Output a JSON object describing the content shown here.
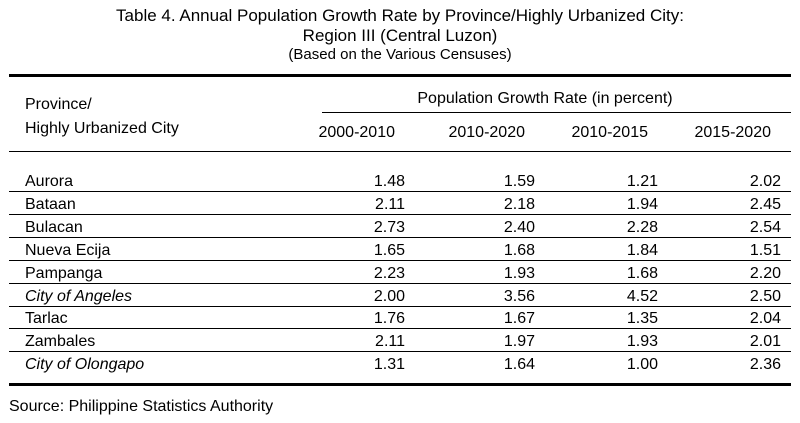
{
  "title": {
    "line1": "Table 4. Annual Population Growth Rate by Province/Highly Urbanized City:",
    "line2": "Region III (Central Luzon)",
    "line3": "(Based on the Various Censuses)"
  },
  "header": {
    "row_label_line1": "Province/",
    "row_label_line2": "Highly Urbanized City",
    "group_label": "Population Growth Rate (in percent)",
    "periods": [
      "2000-2010",
      "2010-2020",
      "2010-2015",
      "2015-2020"
    ]
  },
  "rows": [
    {
      "name": "Aurora",
      "italic": false,
      "values": [
        "1.48",
        "1.59",
        "1.21",
        "2.02"
      ]
    },
    {
      "name": "Bataan",
      "italic": false,
      "values": [
        "2.11",
        "2.18",
        "1.94",
        "2.45"
      ]
    },
    {
      "name": "Bulacan",
      "italic": false,
      "values": [
        "2.73",
        "2.40",
        "2.28",
        "2.54"
      ]
    },
    {
      "name": "Nueva Ecija",
      "italic": false,
      "values": [
        "1.65",
        "1.68",
        "1.84",
        "1.51"
      ]
    },
    {
      "name": "Pampanga",
      "italic": false,
      "values": [
        "2.23",
        "1.93",
        "1.68",
        "2.20"
      ]
    },
    {
      "name": "City of Angeles",
      "italic": true,
      "values": [
        "2.00",
        "3.56",
        "4.52",
        "2.50"
      ]
    },
    {
      "name": "Tarlac",
      "italic": false,
      "values": [
        "1.76",
        "1.67",
        "1.35",
        "2.04"
      ]
    },
    {
      "name": "Zambales",
      "italic": false,
      "values": [
        "2.11",
        "1.97",
        "1.93",
        "2.01"
      ]
    },
    {
      "name": "City of Olongapo",
      "italic": true,
      "values": [
        "1.31",
        "1.64",
        "1.00",
        "2.36"
      ]
    }
  ],
  "source": "Source: Philippine Statistics Authority"
}
